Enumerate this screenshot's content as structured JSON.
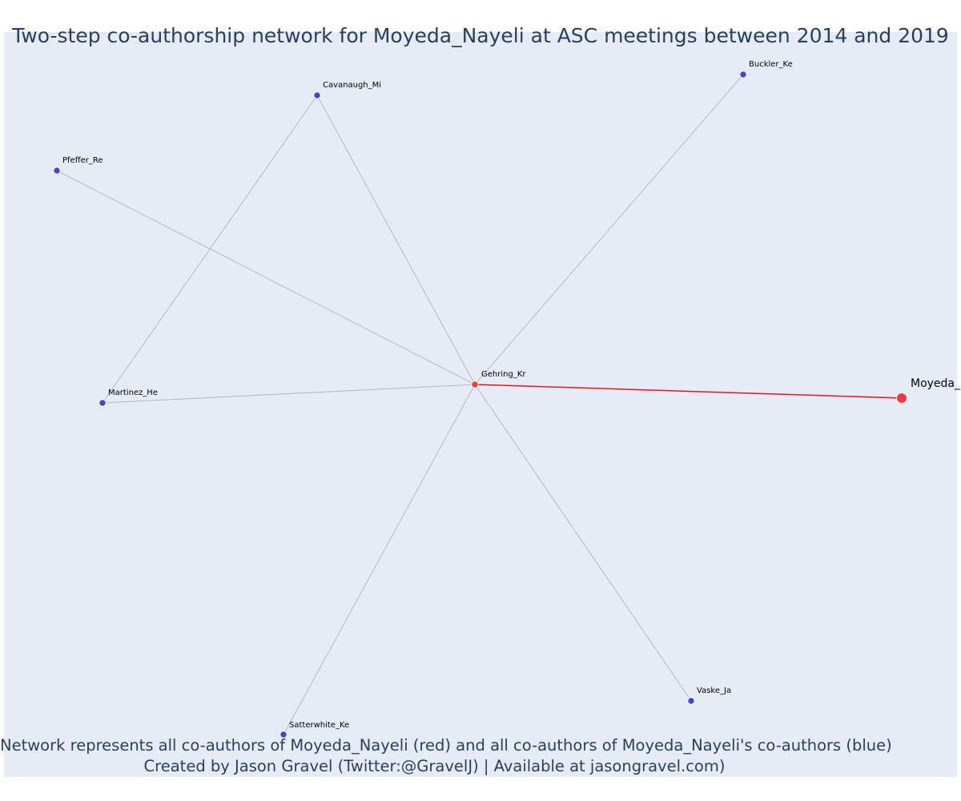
{
  "title": "Two-step co-authorship network for Moyeda_Nayeli at ASC meetings between 2014 and 2019",
  "footer": {
    "line1": "Network represents all co-authors of Moyeda_Nayeli (red) and all co-authors of Moyeda_Nayeli's co-authors (blue)",
    "line2": "Created by Jason Gravel (Twitter:@GravelJ) | Available at jasongravel.com)"
  },
  "colors": {
    "background": "#e5ecf6",
    "title": "#2a3f5f",
    "first_degree_node": "#ef3b3b",
    "second_degree_node": "#3b45e8",
    "main_edge": "#e8131b",
    "secondary_edge": "#b8b8c8"
  },
  "network": {
    "nodes": [
      {
        "id": "Moyeda_Nayeli",
        "label": "Moyeda_",
        "group": "ego"
      },
      {
        "id": "Gehring_Kr",
        "label": "Gehring_Kr",
        "group": "co-author"
      },
      {
        "id": "Cavanaugh_Mi",
        "label": "Cavanaugh_Mi",
        "group": "second-degree"
      },
      {
        "id": "Buckler_Ke",
        "label": "Buckler_Ke",
        "group": "second-degree"
      },
      {
        "id": "Pfeffer_Re",
        "label": "Pfeffer_Re",
        "group": "second-degree"
      },
      {
        "id": "Martinez_He",
        "label": "Martinez_He",
        "group": "second-degree"
      },
      {
        "id": "Satterwhite_Ke",
        "label": "Satterwhite_Ke",
        "group": "second-degree"
      },
      {
        "id": "Vaske_Ja",
        "label": "Vaske_Ja",
        "group": "second-degree"
      }
    ],
    "edges": [
      {
        "source": "Gehring_Kr",
        "target": "Moyeda_Nayeli",
        "type": "main"
      },
      {
        "source": "Gehring_Kr",
        "target": "Cavanaugh_Mi",
        "type": "secondary"
      },
      {
        "source": "Gehring_Kr",
        "target": "Buckler_Ke",
        "type": "secondary"
      },
      {
        "source": "Gehring_Kr",
        "target": "Pfeffer_Re",
        "type": "secondary"
      },
      {
        "source": "Gehring_Kr",
        "target": "Martinez_He",
        "type": "secondary"
      },
      {
        "source": "Gehring_Kr",
        "target": "Satterwhite_Ke",
        "type": "secondary"
      },
      {
        "source": "Gehring_Kr",
        "target": "Vaske_Ja",
        "type": "secondary"
      },
      {
        "source": "Cavanaugh_Mi",
        "target": "Martinez_He",
        "type": "secondary"
      }
    ]
  }
}
